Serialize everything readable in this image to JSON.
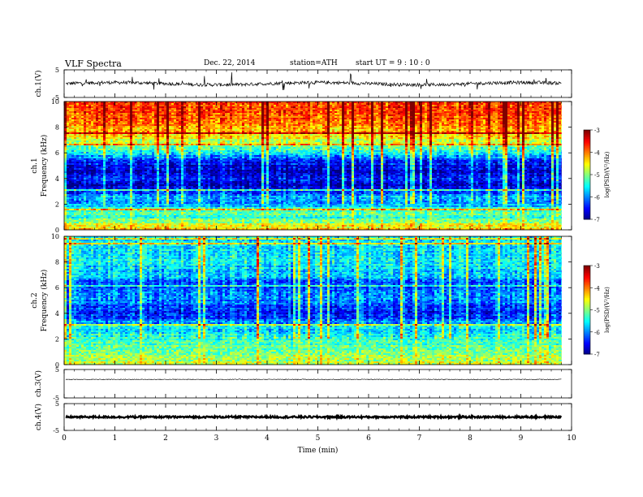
{
  "header": {
    "title": "VLF  Spectra",
    "date": "Dec. 22, 2014",
    "station": "station=ATH",
    "start": "start  UT  =    9  : 10 : 0"
  },
  "chart_data": [
    {
      "type": "line",
      "id": "ch1-waveform",
      "ylabel": "ch.1(V)",
      "ylim": [
        -5,
        5
      ],
      "y_ticks": [
        "5",
        "-5"
      ],
      "baseline": 0,
      "noise_amplitude": 0.6,
      "spike_amplitude": 3.5
    },
    {
      "type": "heatmap",
      "id": "ch1-spectrogram",
      "ylabel": "ch.1",
      "ylabel2": "Frequency  (kHz)",
      "ylim": [
        0,
        10
      ],
      "y_ticks": [
        "0",
        "2",
        "4",
        "6",
        "8",
        "10"
      ],
      "x_range_min": [
        0,
        9.8
      ],
      "colorbar": {
        "label": "log(PSD/(V²/Hz)",
        "range": [
          -7,
          -3
        ],
        "ticks": [
          "-3",
          "-4",
          "-5",
          "-6",
          "-7"
        ]
      },
      "freq_profile_khz": [
        0,
        0.5,
        1,
        1.5,
        2,
        2.5,
        3,
        3.5,
        4,
        4.5,
        5,
        5.5,
        6,
        6.5,
        7,
        7.5,
        8,
        8.5,
        9,
        9.5,
        10
      ],
      "freq_profile_logpsd": [
        -4.2,
        -4.8,
        -5.3,
        -5.2,
        -5.9,
        -5.7,
        -6.4,
        -6.7,
        -6.5,
        -6.7,
        -6.6,
        -6.3,
        -5.4,
        -5.0,
        -4.6,
        -4.3,
        -4.0,
        -3.9,
        -3.8,
        -3.8,
        -3.7
      ]
    },
    {
      "type": "heatmap",
      "id": "ch2-spectrogram",
      "ylabel": "ch.2",
      "ylabel2": "Frequency  (kHz)",
      "ylim": [
        0,
        10
      ],
      "y_ticks": [
        "0",
        "2",
        "4",
        "6",
        "8",
        "10"
      ],
      "x_range_min": [
        0,
        9.8
      ],
      "colorbar": {
        "label": "log(PSD/(V²/Hz)",
        "range": [
          -7,
          -3
        ],
        "ticks": [
          "-3",
          "-4",
          "-5",
          "-6",
          "-7"
        ]
      },
      "freq_profile_khz": [
        0,
        0.5,
        1,
        1.5,
        2,
        2.5,
        3,
        3.5,
        4,
        4.5,
        5,
        5.5,
        6,
        6.5,
        7,
        7.5,
        8,
        8.5,
        9,
        9.5,
        10
      ],
      "freq_profile_logpsd": [
        -4.6,
        -4.9,
        -5.0,
        -5.2,
        -5.3,
        -5.5,
        -5.6,
        -6.1,
        -6.4,
        -6.2,
        -6.0,
        -5.9,
        -6.3,
        -6.0,
        -5.7,
        -5.6,
        -5.6,
        -5.5,
        -5.5,
        -5.5,
        -5.5
      ]
    },
    {
      "type": "line",
      "id": "ch3-waveform",
      "ylabel": "ch.3(V)",
      "ylim": [
        -5,
        5
      ],
      "y_ticks": [
        "5",
        "-5"
      ],
      "baseline": 1.5,
      "noise_amplitude": 0.15,
      "spike_amplitude": 0
    },
    {
      "type": "line",
      "id": "ch4-waveform",
      "ylabel": "ch.4(V)",
      "ylim": [
        -5,
        5
      ],
      "y_ticks": [
        "5",
        "-5"
      ],
      "baseline": 0,
      "noise_amplitude": 0.35,
      "spike_amplitude": 0
    }
  ],
  "x_axis": {
    "label": "Time  (min)",
    "range": [
      0,
      10
    ],
    "ticks": [
      "0",
      "1",
      "2",
      "3",
      "4",
      "5",
      "6",
      "7",
      "8",
      "9",
      "10"
    ]
  }
}
